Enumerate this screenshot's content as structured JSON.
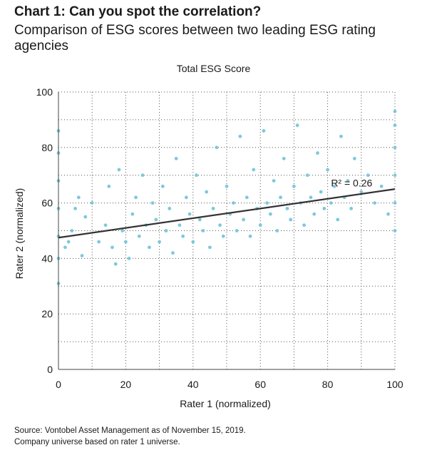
{
  "header": {
    "title": "Chart 1: Can you spot the correlation?",
    "subtitle": "Comparison of ESG scores between two leading ESG rating agencies"
  },
  "footer": {
    "source_line1": "Source: Vontobel Asset Management as of November 15, 2019.",
    "source_line2": "Company universe based on rater 1 universe."
  },
  "colors": {
    "points": "#7ec8dc",
    "trend": "#333333",
    "grid": "#555555",
    "text": "#1a1a1a"
  },
  "chart_data": {
    "type": "scatter",
    "title": "Total ESG Score",
    "xlabel": "Rater 1 (normalized)",
    "ylabel": "Rater 2 (normalized)",
    "xlim": [
      0,
      100
    ],
    "ylim": [
      0,
      100
    ],
    "xticks": [
      "0",
      "20",
      "40",
      "60",
      "80",
      "100"
    ],
    "yticks": [
      "0",
      "20",
      "40",
      "60",
      "80",
      "100"
    ],
    "grid": true,
    "annotation": "R² = 0.26",
    "trendline": {
      "x": [
        0,
        100
      ],
      "y": [
        47.5,
        65
      ]
    },
    "series": [
      {
        "values_x": [
          0,
          0,
          0,
          0,
          0,
          0,
          0,
          2,
          3,
          4,
          5,
          6,
          7,
          8,
          10,
          12,
          14,
          15,
          16,
          17,
          18,
          19,
          20,
          21,
          22,
          23,
          24,
          25,
          26,
          27,
          28,
          29,
          30,
          31,
          32,
          33,
          34,
          35,
          36,
          37,
          38,
          39,
          40,
          41,
          42,
          43,
          44,
          45,
          46,
          47,
          48,
          49,
          50,
          51,
          52,
          53,
          54,
          55,
          56,
          57,
          58,
          59,
          60,
          61,
          62,
          63,
          64,
          65,
          66,
          67,
          68,
          69,
          70,
          71,
          72,
          73,
          74,
          75,
          76,
          77,
          78,
          79,
          80,
          81,
          82,
          83,
          84,
          85,
          86,
          87,
          88,
          90,
          92,
          94,
          96,
          98,
          100,
          100,
          100,
          100,
          100,
          100
        ],
        "values_y": [
          31,
          40,
          48,
          58,
          68,
          78,
          86,
          44,
          46,
          50,
          58,
          62,
          41,
          55,
          60,
          46,
          52,
          66,
          44,
          38,
          72,
          50,
          46,
          40,
          56,
          62,
          48,
          70,
          52,
          44,
          60,
          54,
          46,
          66,
          50,
          58,
          42,
          76,
          52,
          48,
          62,
          56,
          46,
          70,
          54,
          50,
          64,
          44,
          58,
          80,
          52,
          48,
          66,
          56,
          60,
          50,
          84,
          54,
          62,
          48,
          72,
          58,
          52,
          86,
          60,
          56,
          68,
          50,
          62,
          76,
          58,
          54,
          66,
          88,
          60,
          52,
          70,
          62,
          56,
          78,
          64,
          58,
          72,
          60,
          66,
          54,
          84,
          62,
          68,
          58,
          76,
          64,
          70,
          60,
          66,
          56,
          50,
          60,
          70,
          80,
          88,
          93
        ]
      }
    ]
  }
}
